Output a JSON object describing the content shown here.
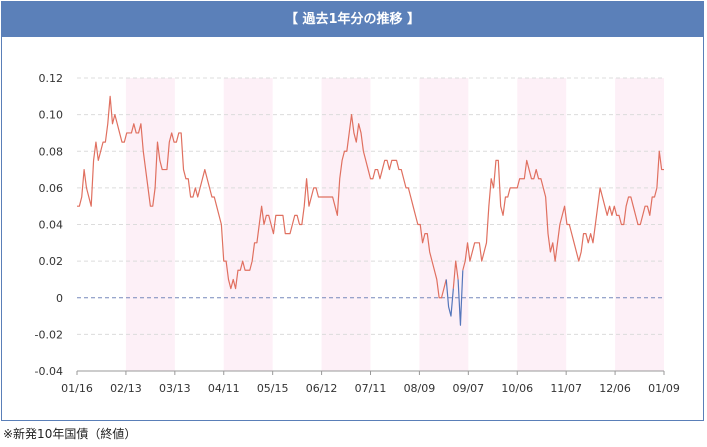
{
  "header": {
    "title": "【 過去1年分の推移 】"
  },
  "footnote": "※新発10年国債（終値）",
  "chart_data": {
    "type": "line",
    "title": "",
    "xlabel": "",
    "ylabel": "",
    "ylim": [
      -0.04,
      0.12
    ],
    "yticks": [
      -0.04,
      -0.02,
      0,
      0.02,
      0.04,
      0.06,
      0.08,
      0.1,
      0.12
    ],
    "ytick_labels": [
      "-0.04",
      "-0.02",
      "0",
      "0.02",
      "0.04",
      "0.06",
      "0.08",
      "0.10",
      "0.12"
    ],
    "xtick_labels": [
      "01/16",
      "02/13",
      "03/13",
      "04/11",
      "05/15",
      "06/12",
      "07/11",
      "08/09",
      "09/07",
      "10/06",
      "11/07",
      "12/06",
      "01/09"
    ],
    "grid": true,
    "colors": {
      "positive": "#e07060",
      "negative": "#5577bb",
      "zero_line": "#7788bb",
      "band": "#fdf0f7"
    },
    "series": [
      {
        "values": [
          0.05,
          0.05,
          0.055,
          0.07,
          0.06,
          0.055,
          0.05,
          0.075,
          0.085,
          0.075,
          0.08,
          0.085,
          0.085,
          0.095,
          0.11,
          0.095,
          0.1,
          0.095,
          0.09,
          0.085,
          0.085,
          0.09,
          0.09,
          0.09,
          0.095,
          0.09,
          0.09,
          0.095,
          0.08,
          0.07,
          0.06,
          0.05,
          0.05,
          0.06,
          0.085,
          0.075,
          0.07,
          0.07,
          0.07,
          0.085,
          0.09,
          0.085,
          0.085,
          0.09,
          0.09,
          0.07,
          0.065,
          0.065,
          0.055,
          0.055,
          0.06,
          0.055,
          0.06,
          0.065,
          0.07,
          0.065,
          0.06,
          0.055,
          0.055,
          0.05,
          0.045,
          0.04,
          0.02,
          0.02,
          0.01,
          0.005,
          0.01,
          0.005,
          0.015,
          0.015,
          0.02,
          0.015,
          0.015,
          0.015,
          0.02,
          0.03,
          0.03,
          0.04,
          0.05,
          0.04,
          0.045,
          0.045,
          0.04,
          0.035,
          0.045,
          0.045,
          0.045,
          0.045,
          0.035,
          0.035,
          0.035,
          0.04,
          0.045,
          0.045,
          0.04,
          0.04,
          0.05,
          0.065,
          0.05,
          0.055,
          0.06,
          0.06,
          0.055,
          0.055,
          0.055,
          0.055,
          0.055,
          0.055,
          0.055,
          0.05,
          0.045,
          0.065,
          0.075,
          0.08,
          0.08,
          0.09,
          0.1,
          0.09,
          0.085,
          0.095,
          0.09,
          0.08,
          0.075,
          0.07,
          0.065,
          0.065,
          0.07,
          0.07,
          0.065,
          0.07,
          0.075,
          0.075,
          0.07,
          0.075,
          0.075,
          0.075,
          0.07,
          0.07,
          0.065,
          0.06,
          0.06,
          0.055,
          0.05,
          0.045,
          0.04,
          0.04,
          0.03,
          0.035,
          0.035,
          0.025,
          0.02,
          0.015,
          0.01,
          0.0,
          0.0,
          0.005,
          0.01,
          -0.005,
          -0.01,
          0.005,
          0.02,
          0.01,
          -0.015,
          0.015,
          0.02,
          0.03,
          0.02,
          0.025,
          0.03,
          0.03,
          0.03,
          0.02,
          0.025,
          0.03,
          0.05,
          0.065,
          0.06,
          0.075,
          0.075,
          0.05,
          0.045,
          0.055,
          0.055,
          0.06,
          0.06,
          0.06,
          0.06,
          0.065,
          0.065,
          0.065,
          0.075,
          0.07,
          0.065,
          0.065,
          0.07,
          0.065,
          0.065,
          0.06,
          0.055,
          0.035,
          0.025,
          0.03,
          0.02,
          0.03,
          0.04,
          0.045,
          0.05,
          0.04,
          0.04,
          0.035,
          0.03,
          0.025,
          0.02,
          0.025,
          0.035,
          0.035,
          0.03,
          0.035,
          0.03,
          0.04,
          0.05,
          0.06,
          0.055,
          0.05,
          0.045,
          0.05,
          0.045,
          0.05,
          0.045,
          0.045,
          0.04,
          0.04,
          0.05,
          0.055,
          0.055,
          0.05,
          0.045,
          0.04,
          0.04,
          0.045,
          0.05,
          0.05,
          0.045,
          0.055,
          0.055,
          0.06,
          0.08,
          0.07,
          0.07
        ]
      }
    ]
  }
}
